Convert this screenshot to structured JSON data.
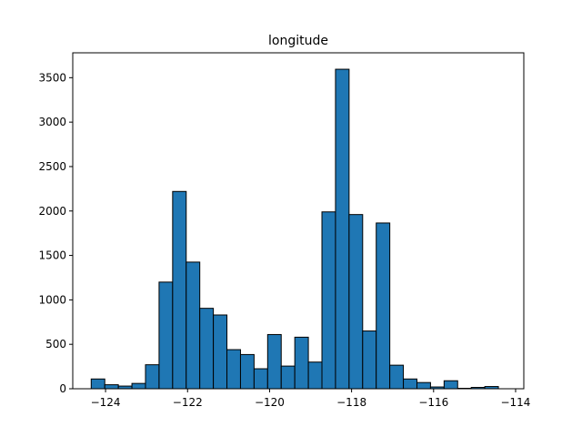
{
  "chart_data": {
    "type": "bar",
    "title": "longitude",
    "xlabel": "",
    "ylabel": "",
    "xlim": [
      -124.8,
      -113.8
    ],
    "ylim": [
      0,
      3780
    ],
    "xticks": [
      -124,
      -122,
      -120,
      -118,
      -116,
      -114
    ],
    "xtick_labels": [
      "−124",
      "−122",
      "−120",
      "−118",
      "−116",
      "−114"
    ],
    "yticks": [
      0,
      500,
      1000,
      1500,
      2000,
      2500,
      3000,
      3500
    ],
    "ytick_labels": [
      "0",
      "500",
      "1000",
      "1500",
      "2000",
      "2500",
      "3000",
      "3500"
    ],
    "bin_start": -124.35,
    "bin_width": 0.331,
    "values": [
      110,
      45,
      30,
      60,
      270,
      1200,
      2220,
      1425,
      905,
      830,
      440,
      385,
      225,
      610,
      255,
      580,
      300,
      1990,
      3595,
      1960,
      650,
      1865,
      265,
      110,
      70,
      20,
      90,
      5,
      15,
      25
    ],
    "bar_color": "#1f77b4",
    "edge_color": "#000000",
    "grid": false
  }
}
